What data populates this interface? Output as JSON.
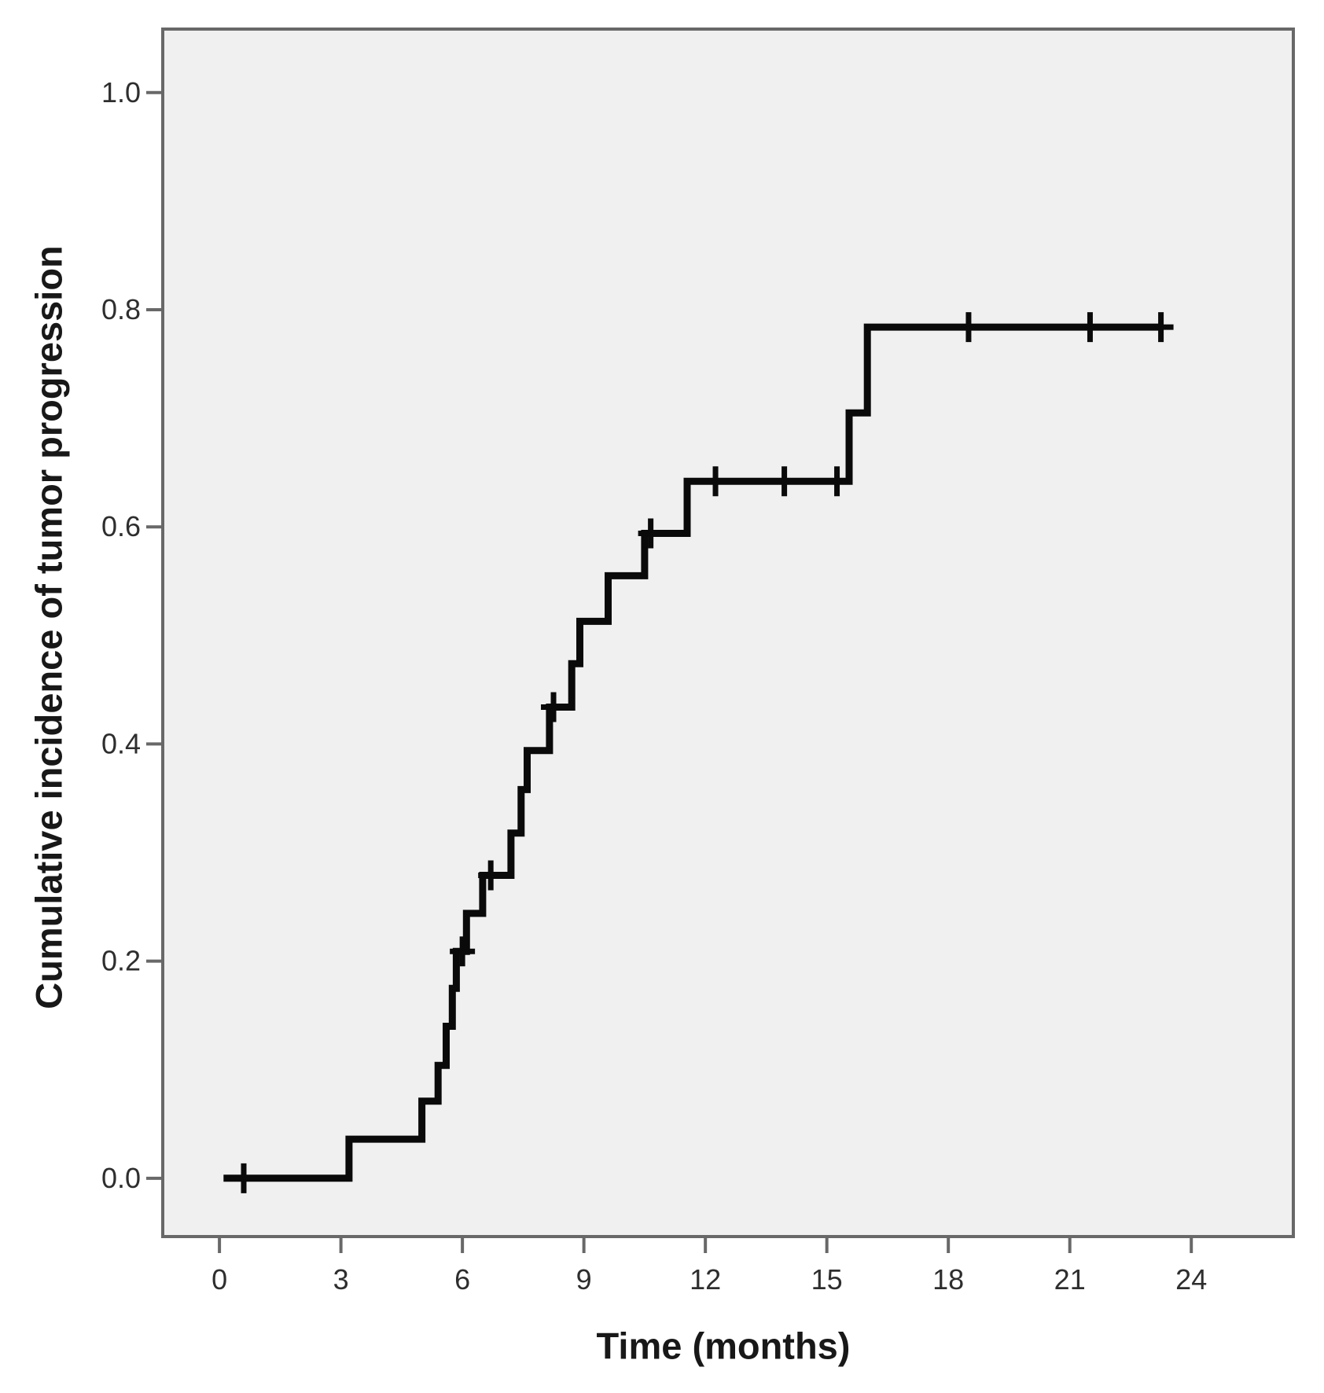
{
  "chart_data": {
    "type": "line",
    "subtype": "kaplan-meier-cumulative-incidence-step",
    "title": "",
    "xlabel": "Time (months)",
    "ylabel": "Cumulative incidence of tumor progression",
    "grid": false,
    "legend_position": "none",
    "plot_bg_color": "#f0f0f0",
    "frame_color": "#686868",
    "tick_text_color": "#2e2e2e",
    "curve_color": "#0a0a0a",
    "xlim": [
      -1.4,
      26.52
    ],
    "ylim": [
      -0.0537,
      1.0585
    ],
    "x_ticks": {
      "values": [
        0,
        3,
        6,
        9,
        12,
        15,
        18,
        21,
        24
      ],
      "labels": [
        "0",
        "3",
        "6",
        "9",
        "12",
        "15",
        "18",
        "21",
        "24"
      ]
    },
    "y_ticks": {
      "values": [
        0.0,
        0.2,
        0.4,
        0.6,
        0.8,
        1.0
      ],
      "labels": [
        "0.0",
        "0.2",
        "0.4",
        "0.6",
        "0.8",
        "1.0"
      ]
    },
    "series": [
      {
        "name": "Cumulative incidence of tumor progression",
        "draw_style": "step-post",
        "start": [
          0.1,
          0.0
        ],
        "end_time": 23.25,
        "steps": [
          [
            3.2,
            0.036
          ],
          [
            5.0,
            0.071
          ],
          [
            5.4,
            0.104
          ],
          [
            5.6,
            0.14
          ],
          [
            5.75,
            0.175
          ],
          [
            5.85,
            0.209
          ],
          [
            6.1,
            0.244
          ],
          [
            6.5,
            0.279
          ],
          [
            7.2,
            0.318
          ],
          [
            7.45,
            0.358
          ],
          [
            7.6,
            0.394
          ],
          [
            8.15,
            0.434
          ],
          [
            8.7,
            0.474
          ],
          [
            8.9,
            0.513
          ],
          [
            9.6,
            0.555
          ],
          [
            10.5,
            0.594
          ],
          [
            11.55,
            0.642
          ],
          [
            15.55,
            0.705
          ],
          [
            16.0,
            0.784
          ]
        ],
        "censor_marks": [
          [
            0.6,
            0.0
          ],
          [
            6.0,
            0.209
          ],
          [
            6.7,
            0.279
          ],
          [
            8.25,
            0.434
          ],
          [
            10.65,
            0.594
          ],
          [
            12.25,
            0.642
          ],
          [
            13.95,
            0.642
          ],
          [
            15.25,
            0.642
          ],
          [
            18.5,
            0.784
          ],
          [
            21.5,
            0.784
          ],
          [
            23.25,
            0.784
          ]
        ]
      }
    ]
  }
}
